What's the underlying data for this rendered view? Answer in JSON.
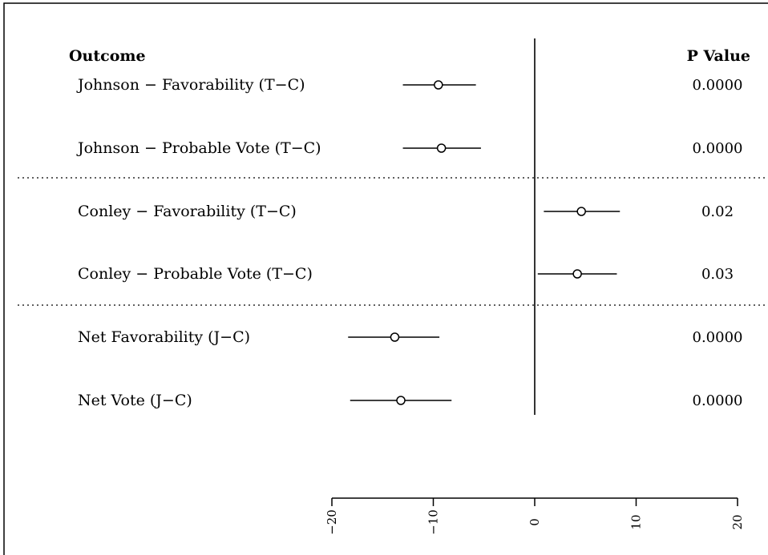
{
  "chart_data": {
    "type": "forest",
    "headers": {
      "outcome": "Outcome",
      "p_value": "P Value"
    },
    "xlim": [
      -20,
      20
    ],
    "xticks": [
      -20,
      -10,
      0,
      10,
      20
    ],
    "reference_line": 0,
    "rows": [
      {
        "label": "Johnson − Favorability (T−C)",
        "estimate": -9.5,
        "lower": -13.0,
        "upper": -5.8,
        "p": "0.0000"
      },
      {
        "label": "Johnson − Probable Vote (T−C)",
        "estimate": -9.2,
        "lower": -13.0,
        "upper": -5.3,
        "p": "0.0000"
      },
      {
        "label": "Conley − Favorability (T−C)",
        "estimate": 4.6,
        "lower": 0.9,
        "upper": 8.4,
        "p": "0.02"
      },
      {
        "label": "Conley − Probable Vote (T−C)",
        "estimate": 4.2,
        "lower": 0.3,
        "upper": 8.1,
        "p": "0.03"
      },
      {
        "label": "Net Favorability (J−C)",
        "estimate": -13.8,
        "lower": -18.4,
        "upper": -9.4,
        "p": "0.0000"
      },
      {
        "label": "Net Vote (J−C)",
        "estimate": -13.2,
        "lower": -18.2,
        "upper": -8.2,
        "p": "0.0000"
      }
    ],
    "group_separators_after_rows": [
      2,
      4
    ]
  }
}
